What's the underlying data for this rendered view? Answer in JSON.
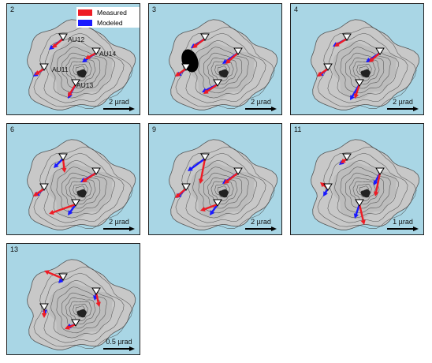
{
  "legend": {
    "measured": "Measured",
    "modeled": "Modeled"
  },
  "colors": {
    "measured": "#ee1c25",
    "modeled": "#1a1aff",
    "sea": "#a9d6e5",
    "land": "#c8c8c8"
  },
  "station_labels": [
    "AU12",
    "AU14",
    "AU11",
    "AU13"
  ],
  "panels": [
    {
      "label": "2",
      "scale": "2 µrad"
    },
    {
      "label": "3",
      "scale": "2 µrad"
    },
    {
      "label": "4",
      "scale": "2 µrad"
    },
    {
      "label": "6",
      "scale": "2 µrad"
    },
    {
      "label": "9",
      "scale": "2 µrad"
    },
    {
      "label": "11",
      "scale": "1 µrad"
    },
    {
      "label": "13",
      "scale": "0.5 µrad"
    }
  ]
}
